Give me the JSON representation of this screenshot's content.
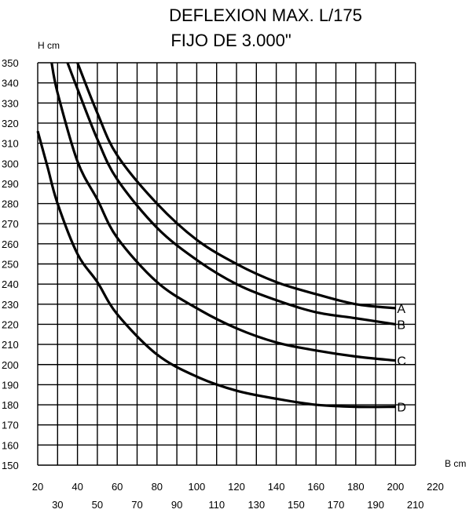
{
  "chart_data": {
    "type": "line",
    "title": "DEFLEXION MAX. L/175",
    "subtitle": "FIJO DE 3.000\"",
    "xlabel": "B cm",
    "ylabel": "H cm",
    "xlim": [
      20,
      220
    ],
    "ylim": [
      150,
      350
    ],
    "x_ticks": [
      20,
      30,
      40,
      50,
      60,
      70,
      80,
      90,
      100,
      110,
      120,
      130,
      140,
      150,
      160,
      170,
      180,
      190,
      200,
      210,
      220
    ],
    "y_ticks": [
      150,
      160,
      170,
      180,
      190,
      200,
      210,
      220,
      230,
      240,
      250,
      260,
      270,
      280,
      290,
      300,
      310,
      320,
      330,
      340,
      350
    ],
    "grid": true,
    "series": [
      {
        "name": "A",
        "x": [
          40,
          50,
          60,
          80,
          100,
          120,
          140,
          160,
          180,
          200
        ],
        "y": [
          350,
          325,
          304,
          280,
          262,
          250,
          241,
          235,
          230,
          228
        ]
      },
      {
        "name": "B",
        "x": [
          35,
          40,
          50,
          60,
          80,
          100,
          120,
          140,
          160,
          180,
          200
        ],
        "y": [
          350,
          337,
          312,
          292,
          268,
          252,
          240,
          232,
          226,
          223,
          220
        ]
      },
      {
        "name": "C",
        "x": [
          27,
          30,
          40,
          50,
          60,
          80,
          100,
          120,
          140,
          160,
          180,
          200
        ],
        "y": [
          350,
          335,
          301,
          282,
          263,
          241,
          228,
          218,
          211,
          207,
          204,
          202
        ]
      },
      {
        "name": "D",
        "x": [
          20,
          25,
          30,
          40,
          50,
          60,
          80,
          100,
          120,
          140,
          160,
          180,
          200
        ],
        "y": [
          316,
          298,
          280,
          255,
          241,
          225,
          205,
          194,
          187,
          183,
          180,
          179,
          179
        ]
      }
    ]
  }
}
